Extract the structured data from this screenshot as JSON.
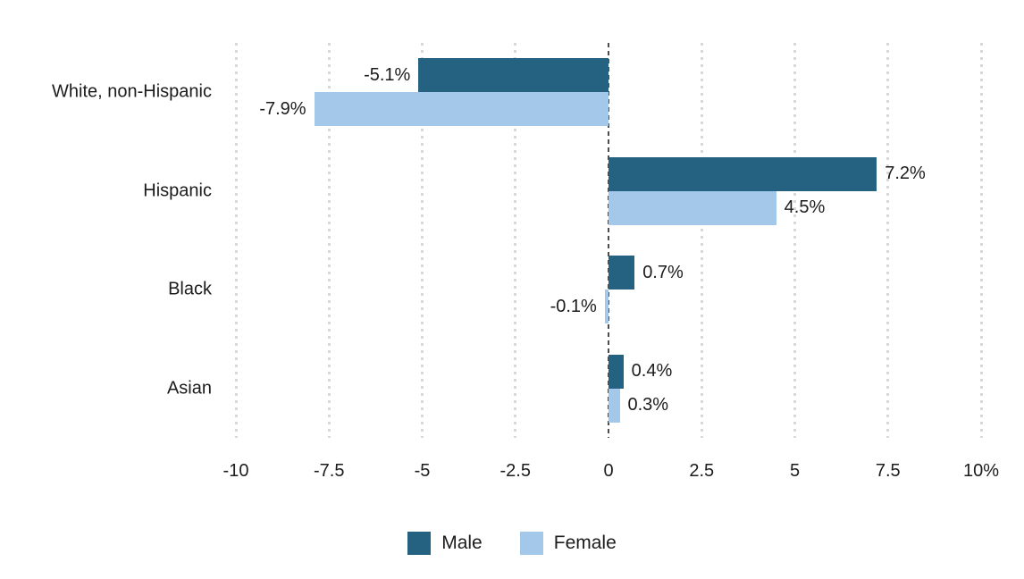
{
  "chart_data": {
    "type": "bar",
    "orientation": "horizontal",
    "diverging": true,
    "title": "",
    "categories": [
      "White, non-Hispanic",
      "Hispanic",
      "Black",
      "Asian"
    ],
    "series": [
      {
        "name": "Male",
        "color": "#256180",
        "values": [
          -5.1,
          7.2,
          0.7,
          0.4
        ],
        "value_labels": [
          "-5.1%",
          "7.2%",
          "0.7%",
          "0.4%"
        ]
      },
      {
        "name": "Female",
        "color": "#A3C8EA",
        "values": [
          -7.9,
          4.5,
          -0.1,
          0.3
        ],
        "value_labels": [
          "-7.9%",
          "4.5%",
          "-0.1%",
          "0.3%"
        ]
      }
    ],
    "x_axis": {
      "min": -10,
      "max": 10,
      "ticks": [
        -10,
        -7.5,
        -5,
        -2.5,
        0,
        2.5,
        5,
        7.5,
        10
      ],
      "tick_labels": [
        "-10",
        "-7.5",
        "-5",
        "-2.5",
        "0",
        "2.5",
        "5",
        "7.5",
        "10%"
      ]
    },
    "grid": "vertical-dotted",
    "zero_line": "dashed",
    "legend_position": "bottom"
  },
  "colors": {
    "male": "#256180",
    "female": "#A3C8EA",
    "gridline": "#D8D8D8",
    "zero_line": "#4D4D4D",
    "text": "#1C1C1C",
    "background": "#FFFFFF"
  }
}
